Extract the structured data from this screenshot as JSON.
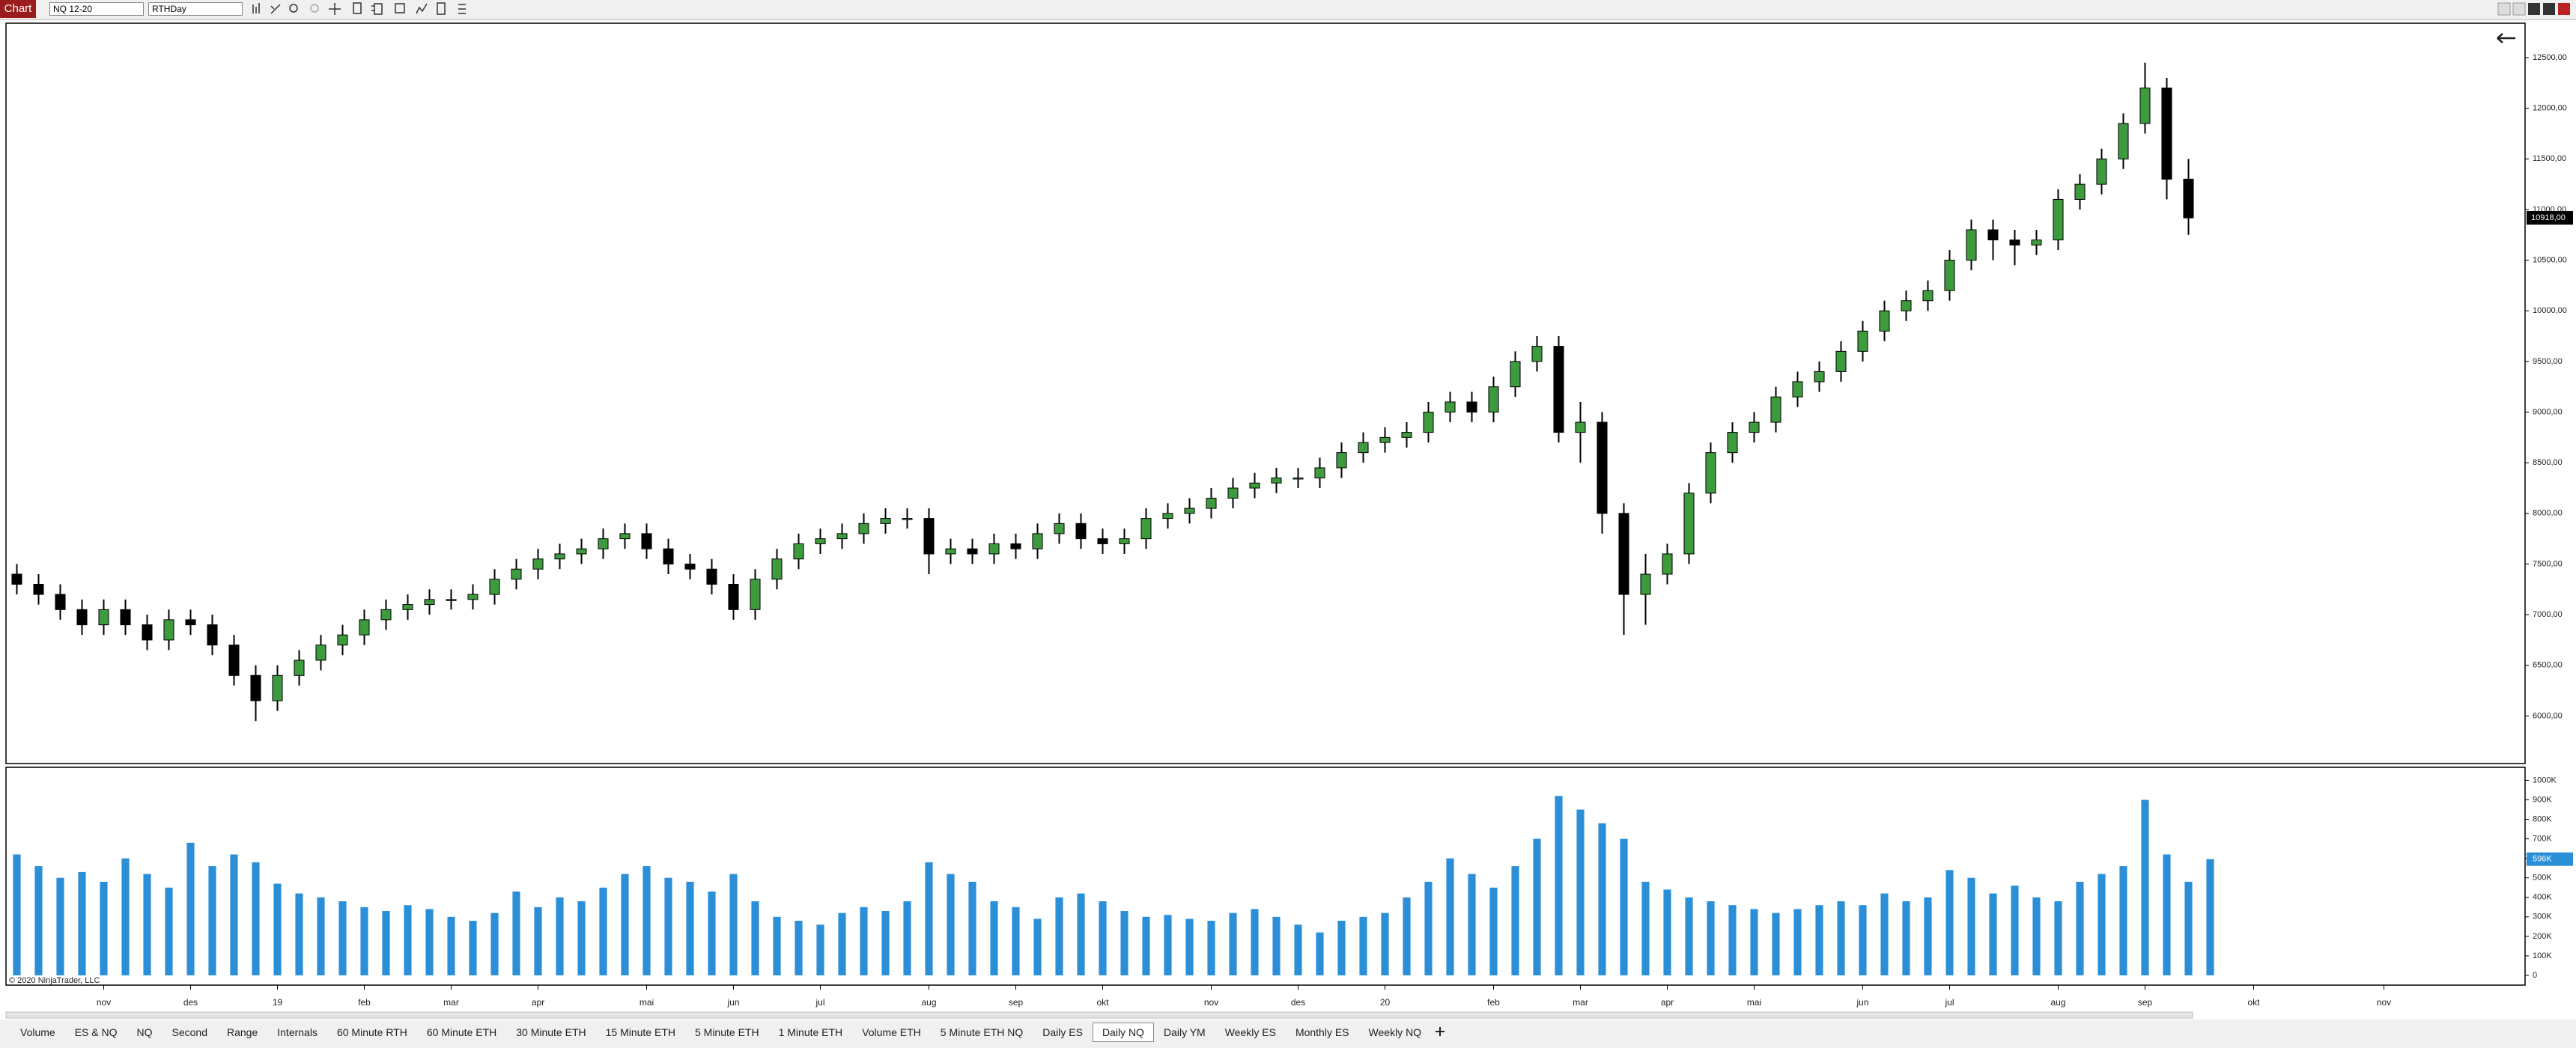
{
  "ui": {
    "app_button": "Chart",
    "instrument": "NQ 12-20",
    "template": "RTHDay",
    "copyright": "© 2020 NinjaTrader, LLC",
    "tabs": [
      "Volume",
      "ES & NQ",
      "NQ",
      "Second",
      "Range",
      "Internals",
      "60 Minute RTH",
      "60 Minute ETH",
      "30 Minute ETH",
      "15 Minute ETH",
      "5 Minute ETH",
      "1 Minute ETH",
      "Volume ETH",
      "5 Minute ETH NQ",
      "Daily ES",
      "Daily NQ",
      "Daily YM",
      "Weekly ES",
      "Monthly ES",
      "Weekly NQ"
    ],
    "active_tab": 15
  },
  "chart_data": [
    {
      "type": "candlestick",
      "categories": [
        null,
        null,
        null,
        null,
        "nov",
        null,
        null,
        null,
        "des",
        null,
        null,
        null,
        "19",
        null,
        null,
        null,
        "feb",
        null,
        null,
        null,
        "mar",
        null,
        null,
        null,
        "apr",
        null,
        null,
        null,
        null,
        "mai",
        null,
        null,
        null,
        "jun",
        null,
        null,
        null,
        "jul",
        null,
        null,
        null,
        null,
        "aug",
        null,
        null,
        null,
        "sep",
        null,
        null,
        null,
        "okt",
        null,
        null,
        null,
        null,
        "nov",
        null,
        null,
        null,
        "des",
        null,
        null,
        null,
        "20",
        null,
        null,
        null,
        null,
        "feb",
        null,
        null,
        null,
        "mar",
        null,
        null,
        null,
        "apr",
        null,
        null,
        null,
        "mai",
        null,
        null,
        null,
        null,
        "jun",
        null,
        null,
        null,
        "jul",
        null,
        null,
        null,
        null,
        "aug",
        null,
        null,
        null,
        "sep",
        null,
        null,
        null,
        null,
        "okt",
        null,
        null,
        null,
        null,
        null,
        "nov",
        null,
        null,
        null,
        null,
        null,
        null
      ],
      "open": [
        7400,
        7300,
        7200,
        7050,
        6900,
        7050,
        6900,
        6750,
        6950,
        6900,
        6700,
        6400,
        6150,
        6400,
        6550,
        6700,
        6800,
        6950,
        7050,
        7100,
        7150,
        7150,
        7200,
        7350,
        7450,
        7550,
        7600,
        7650,
        7750,
        7800,
        7650,
        7500,
        7450,
        7300,
        7050,
        7350,
        7550,
        7700,
        7750,
        7800,
        7900,
        7950,
        7950,
        7600,
        7650,
        7600,
        7700,
        7650,
        7800,
        7900,
        7750,
        7700,
        7750,
        7950,
        8000,
        8050,
        8150,
        8250,
        8300,
        8350,
        8350,
        8450,
        8600,
        8700,
        8750,
        8800,
        9000,
        9100,
        9000,
        9250,
        9500,
        9650,
        8800,
        8900,
        8000,
        7200,
        7400,
        7600,
        8200,
        8600,
        8800,
        8900,
        9150,
        9300,
        9400,
        9600,
        9800,
        10000,
        10100,
        10200,
        10500,
        10800,
        10700,
        10650,
        10700,
        11100,
        11250,
        11500,
        11850,
        12200,
        11300,
        null,
        null,
        null,
        null,
        null,
        null,
        null,
        null,
        null,
        null,
        null,
        null,
        null,
        null,
        null
      ],
      "high": [
        7500,
        7400,
        7300,
        7150,
        7150,
        7150,
        7000,
        7050,
        7050,
        7000,
        6800,
        6500,
        6500,
        6650,
        6800,
        6900,
        7050,
        7150,
        7200,
        7250,
        7250,
        7300,
        7450,
        7550,
        7650,
        7700,
        7750,
        7850,
        7900,
        7900,
        7750,
        7600,
        7550,
        7400,
        7450,
        7650,
        7800,
        7850,
        7900,
        8000,
        8050,
        8050,
        8050,
        7750,
        7750,
        7800,
        7800,
        7900,
        8000,
        8000,
        7850,
        7850,
        8050,
        8100,
        8150,
        8250,
        8350,
        8400,
        8450,
        8450,
        8550,
        8700,
        8800,
        8850,
        8900,
        9100,
        9200,
        9200,
        9350,
        9600,
        9750,
        9750,
        9100,
        9000,
        8100,
        7600,
        7700,
        8300,
        8700,
        8900,
        9000,
        9250,
        9400,
        9500,
        9700,
        9900,
        10100,
        10200,
        10300,
        10600,
        10900,
        10900,
        10800,
        10800,
        11200,
        11350,
        11600,
        11950,
        12450,
        12300,
        11500,
        null,
        null,
        null,
        null,
        null,
        null,
        null,
        null,
        null,
        null,
        null,
        null,
        null,
        null,
        null
      ],
      "low": [
        7200,
        7100,
        6950,
        6800,
        6800,
        6800,
        6650,
        6650,
        6800,
        6600,
        6300,
        5950,
        6050,
        6300,
        6450,
        6600,
        6700,
        6850,
        6950,
        7000,
        7050,
        7050,
        7100,
        7250,
        7350,
        7450,
        7500,
        7550,
        7650,
        7550,
        7400,
        7350,
        7200,
        6950,
        6950,
        7250,
        7450,
        7600,
        7650,
        7700,
        7800,
        7850,
        7400,
        7500,
        7500,
        7500,
        7550,
        7550,
        7700,
        7650,
        7600,
        7600,
        7650,
        7850,
        7900,
        7950,
        8050,
        8150,
        8200,
        8250,
        8250,
        8350,
        8500,
        8600,
        8650,
        8700,
        8900,
        8900,
        8900,
        9150,
        9400,
        8700,
        8500,
        7800,
        6800,
        6900,
        7300,
        7500,
        8100,
        8500,
        8700,
        8800,
        9050,
        9200,
        9300,
        9500,
        9700,
        9900,
        10000,
        10100,
        10400,
        10500,
        10450,
        10550,
        10600,
        11000,
        11150,
        11400,
        11750,
        11100,
        10750,
        null,
        null,
        null,
        null,
        null,
        null,
        null,
        null,
        null,
        null,
        null,
        null,
        null,
        null,
        null
      ],
      "close": [
        7300,
        7200,
        7050,
        6900,
        7050,
        6900,
        6750,
        6950,
        6900,
        6700,
        6400,
        6150,
        6400,
        6550,
        6700,
        6800,
        6950,
        7050,
        7100,
        7150,
        7150,
        7200,
        7350,
        7450,
        7550,
        7600,
        7650,
        7750,
        7800,
        7650,
        7500,
        7450,
        7300,
        7050,
        7350,
        7550,
        7700,
        7750,
        7800,
        7900,
        7950,
        7950,
        7600,
        7650,
        7600,
        7700,
        7650,
        7800,
        7900,
        7750,
        7700,
        7750,
        7950,
        8000,
        8050,
        8150,
        8250,
        8300,
        8350,
        8350,
        8450,
        8600,
        8700,
        8750,
        8800,
        9000,
        9100,
        9000,
        9250,
        9500,
        9650,
        8800,
        8900,
        8000,
        7200,
        7400,
        7600,
        8200,
        8600,
        8800,
        8900,
        9150,
        9300,
        9400,
        9600,
        9800,
        10000,
        10100,
        10200,
        10500,
        10800,
        10700,
        10650,
        10700,
        11100,
        11250,
        11500,
        11850,
        12200,
        11300,
        10918,
        null,
        null,
        null,
        null,
        null,
        null,
        null,
        null,
        null,
        null,
        null,
        null,
        null,
        null,
        null
      ],
      "up_color": "#3d9a3d",
      "down_color": "#000000",
      "ylim": [
        5530,
        12840
      ],
      "yticks": [
        {
          "value": 6000,
          "label": "6000,00"
        },
        {
          "value": 6500,
          "label": "6500,00"
        },
        {
          "value": 7000,
          "label": "7000,00"
        },
        {
          "value": 7500,
          "label": "7500,00"
        },
        {
          "value": 8000,
          "label": "8000,00"
        },
        {
          "value": 8500,
          "label": "8500,00"
        },
        {
          "value": 9000,
          "label": "9000,00"
        },
        {
          "value": 9500,
          "label": "9500,00"
        },
        {
          "value": 10000,
          "label": "10000,00"
        },
        {
          "value": 10500,
          "label": "10500,00"
        },
        {
          "value": 11000,
          "label": "11000,00"
        },
        {
          "value": 11500,
          "label": "11500,00"
        },
        {
          "value": 12000,
          "label": "12000,00"
        },
        {
          "value": 12500,
          "label": "12500,00"
        }
      ],
      "last_label": "10918,00"
    },
    {
      "type": "bar",
      "values": [
        620000,
        560000,
        500000,
        530000,
        480000,
        600000,
        520000,
        450000,
        680000,
        560000,
        620000,
        580000,
        470000,
        420000,
        400000,
        380000,
        350000,
        330000,
        360000,
        340000,
        300000,
        280000,
        320000,
        430000,
        350000,
        400000,
        380000,
        450000,
        520000,
        560000,
        500000,
        480000,
        430000,
        520000,
        380000,
        300000,
        280000,
        260000,
        320000,
        350000,
        330000,
        380000,
        580000,
        520000,
        480000,
        380000,
        350000,
        290000,
        400000,
        420000,
        380000,
        330000,
        300000,
        310000,
        290000,
        280000,
        320000,
        340000,
        300000,
        260000,
        220000,
        280000,
        300000,
        320000,
        400000,
        480000,
        600000,
        520000,
        450000,
        560000,
        700000,
        920000,
        850000,
        780000,
        700000,
        480000,
        440000,
        400000,
        380000,
        360000,
        340000,
        320000,
        340000,
        360000,
        380000,
        360000,
        420000,
        380000,
        400000,
        540000,
        500000,
        420000,
        460000,
        400000,
        380000,
        480000,
        520000,
        560000,
        900000,
        620000,
        480000,
        596000,
        null,
        null,
        null,
        null,
        null,
        null,
        null,
        null,
        null,
        null,
        null,
        null,
        null,
        null,
        null
      ],
      "color": "#2b8fd8",
      "ylim": [
        -50000,
        1067000
      ],
      "yticks": [
        0,
        {
          "value": 100000,
          "label": "100K"
        },
        {
          "value": 200000,
          "label": "200K"
        },
        {
          "value": 300000,
          "label": "300K"
        },
        {
          "value": 400000,
          "label": "400K"
        },
        {
          "value": 500000,
          "label": "500K"
        },
        {
          "value": 600000,
          "label": "600K"
        },
        {
          "value": 700000,
          "label": "700K"
        },
        {
          "value": 800000,
          "label": "800K"
        },
        {
          "value": 900000,
          "label": "900K"
        },
        {
          "value": 1000000,
          "label": "1000K"
        }
      ],
      "last_label": "596K"
    }
  ]
}
